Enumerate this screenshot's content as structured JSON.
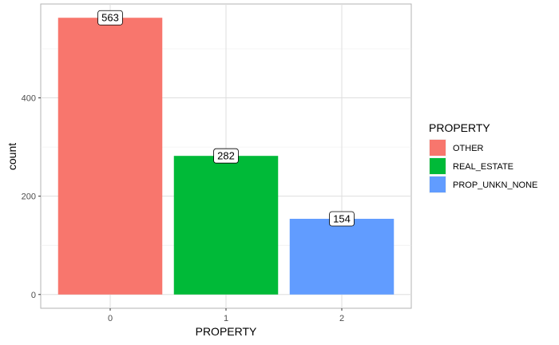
{
  "chart_data": {
    "type": "bar",
    "categories": [
      "0",
      "1",
      "2"
    ],
    "values": [
      563,
      282,
      154
    ],
    "data_labels": [
      "563",
      "282",
      "154"
    ],
    "xlabel": "PROPERTY",
    "ylabel": "count",
    "ylim": [
      -28,
      591
    ],
    "yticks": [
      0,
      200,
      400
    ],
    "grid": true,
    "legend": {
      "title": "PROPERTY",
      "placement": "right",
      "entries": [
        "OTHER",
        "REAL_ESTATE",
        "PROP_UNKN_NONE"
      ]
    },
    "colors": [
      "#F8766D",
      "#00BA38",
      "#619CFF"
    ]
  }
}
